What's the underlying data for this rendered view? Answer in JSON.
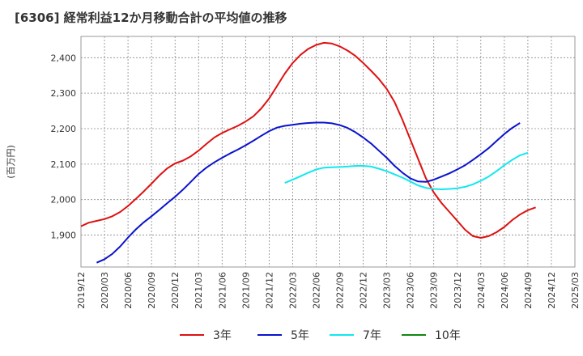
{
  "chart_data": {
    "type": "line",
    "title": "[6306]  経常利益12か月移動合計の平均値の推移",
    "ylabel": "(百万円)",
    "xlabel": "",
    "ylim": [
      1810,
      2460
    ],
    "yticks": [
      1900,
      2000,
      2100,
      2200,
      2300,
      2400
    ],
    "ytick_labels": [
      "1,900",
      "2,000",
      "2,100",
      "2,200",
      "2,300",
      "2,400"
    ],
    "xlim": [
      "2019-12",
      "2025-03"
    ],
    "xtick_labels": [
      "2019/12",
      "2020/03",
      "2020/06",
      "2020/09",
      "2020/12",
      "2021/03",
      "2021/06",
      "2021/09",
      "2021/12",
      "2022/03",
      "2022/06",
      "2022/09",
      "2022/12",
      "2023/03",
      "2023/06",
      "2023/09",
      "2023/12",
      "2024/03",
      "2024/06",
      "2024/09",
      "2024/12",
      "2025/03"
    ],
    "grid": true,
    "legend_position": "bottom",
    "series": [
      {
        "name": "3年",
        "color": "#dd1111",
        "start": "2019-12",
        "values": [
          1925,
          1935,
          1940,
          1945,
          1953,
          1965,
          1982,
          2002,
          2023,
          2045,
          2068,
          2088,
          2102,
          2110,
          2122,
          2138,
          2157,
          2175,
          2188,
          2198,
          2208,
          2220,
          2235,
          2257,
          2285,
          2320,
          2355,
          2385,
          2408,
          2425,
          2436,
          2442,
          2440,
          2432,
          2420,
          2405,
          2385,
          2363,
          2340,
          2312,
          2275,
          2225,
          2170,
          2115,
          2060,
          2020,
          1990,
          1965,
          1940,
          1915,
          1897,
          1892,
          1897,
          1908,
          1923,
          1942,
          1958,
          1970,
          1978
        ]
      },
      {
        "name": "5年",
        "color": "#0a13cc",
        "start": "2020-02",
        "values": [
          1822,
          1832,
          1847,
          1868,
          1893,
          1916,
          1936,
          1953,
          1971,
          1990,
          2008,
          2028,
          2050,
          2072,
          2090,
          2105,
          2118,
          2130,
          2141,
          2153,
          2166,
          2180,
          2193,
          2203,
          2208,
          2211,
          2214,
          2216,
          2217,
          2217,
          2215,
          2210,
          2202,
          2190,
          2175,
          2158,
          2138,
          2118,
          2095,
          2076,
          2060,
          2051,
          2050,
          2056,
          2065,
          2074,
          2085,
          2097,
          2112,
          2128,
          2145,
          2165,
          2185,
          2202,
          2216
        ]
      },
      {
        "name": "7年",
        "color": "#12e8ee",
        "start": "2022-02",
        "values": [
          2047,
          2056,
          2066,
          2076,
          2085,
          2090,
          2091,
          2092,
          2093,
          2095,
          2095,
          2093,
          2087,
          2080,
          2071,
          2062,
          2051,
          2040,
          2033,
          2030,
          2029,
          2030,
          2032,
          2036,
          2043,
          2053,
          2065,
          2080,
          2097,
          2112,
          2125,
          2132
        ]
      },
      {
        "name": "10年",
        "color": "#118811",
        "start": "2025-01",
        "values": []
      }
    ]
  }
}
